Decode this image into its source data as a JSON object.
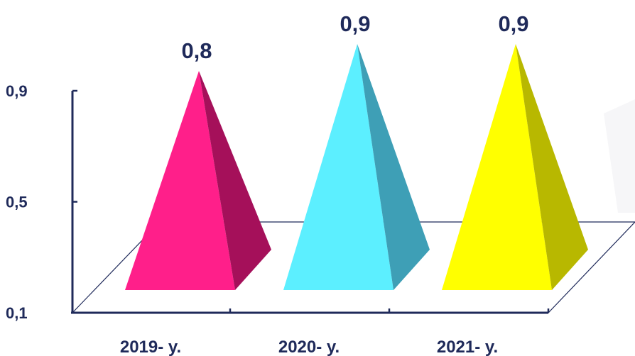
{
  "chart_data": {
    "type": "bar",
    "style": "3d-pyramid",
    "title": "",
    "xlabel": "",
    "ylabel": "",
    "categories": [
      "2019- y.",
      "2020- y.",
      "2021- y."
    ],
    "values": [
      0.8,
      0.9,
      0.9
    ],
    "data_labels": [
      "0,8",
      "0,9",
      "0,9"
    ],
    "y_ticks": [
      0.1,
      0.5,
      0.9
    ],
    "y_tick_labels": [
      "0,1",
      "0,5",
      "0,9"
    ],
    "ylim": [
      0.1,
      0.9
    ],
    "grid": false,
    "colors": {
      "front": [
        "#ff1f8a",
        "#5cefff",
        "#ffff00"
      ],
      "side": [
        "#a5105a",
        "#3e9fb6",
        "#b8b800"
      ],
      "axis": "#1f2a5a"
    }
  }
}
